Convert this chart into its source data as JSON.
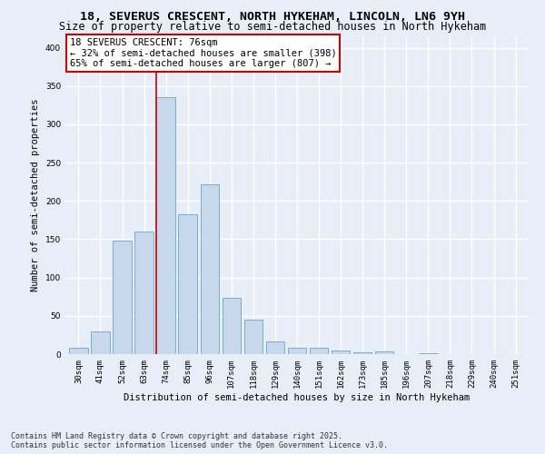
{
  "title": "18, SEVERUS CRESCENT, NORTH HYKEHAM, LINCOLN, LN6 9YH",
  "subtitle": "Size of property relative to semi-detached houses in North Hykeham",
  "xlabel": "Distribution of semi-detached houses by size in North Hykeham",
  "ylabel": "Number of semi-detached properties",
  "categories": [
    "30sqm",
    "41sqm",
    "52sqm",
    "63sqm",
    "74sqm",
    "85sqm",
    "96sqm",
    "107sqm",
    "118sqm",
    "129sqm",
    "140sqm",
    "151sqm",
    "162sqm",
    "173sqm",
    "185sqm",
    "196sqm",
    "207sqm",
    "218sqm",
    "229sqm",
    "240sqm",
    "251sqm"
  ],
  "values": [
    8,
    30,
    148,
    160,
    335,
    183,
    222,
    73,
    45,
    17,
    8,
    8,
    5,
    2,
    4,
    0,
    1,
    0,
    0,
    0,
    0
  ],
  "bar_color": "#c8d8ec",
  "bar_edge_color": "#7aaecc",
  "highlight_index": 4,
  "annotation_title": "18 SEVERUS CRESCENT: 76sqm",
  "annotation_line1": "← 32% of semi-detached houses are smaller (398)",
  "annotation_line2": "65% of semi-detached houses are larger (807) →",
  "annotation_box_color": "#ffffff",
  "annotation_box_edge": "#cc0000",
  "vline_color": "#cc0000",
  "ylim": [
    0,
    415
  ],
  "yticks": [
    0,
    50,
    100,
    150,
    200,
    250,
    300,
    350,
    400
  ],
  "footer_line1": "Contains HM Land Registry data © Crown copyright and database right 2025.",
  "footer_line2": "Contains public sector information licensed under the Open Government Licence v3.0.",
  "bg_color": "#e8eef8",
  "plot_bg_color": "#e8eef8",
  "grid_color": "#ffffff",
  "title_fontsize": 9.5,
  "subtitle_fontsize": 8.5,
  "tick_fontsize": 6.5,
  "axis_label_fontsize": 7.5,
  "annotation_fontsize": 7.5,
  "footer_fontsize": 6.0
}
